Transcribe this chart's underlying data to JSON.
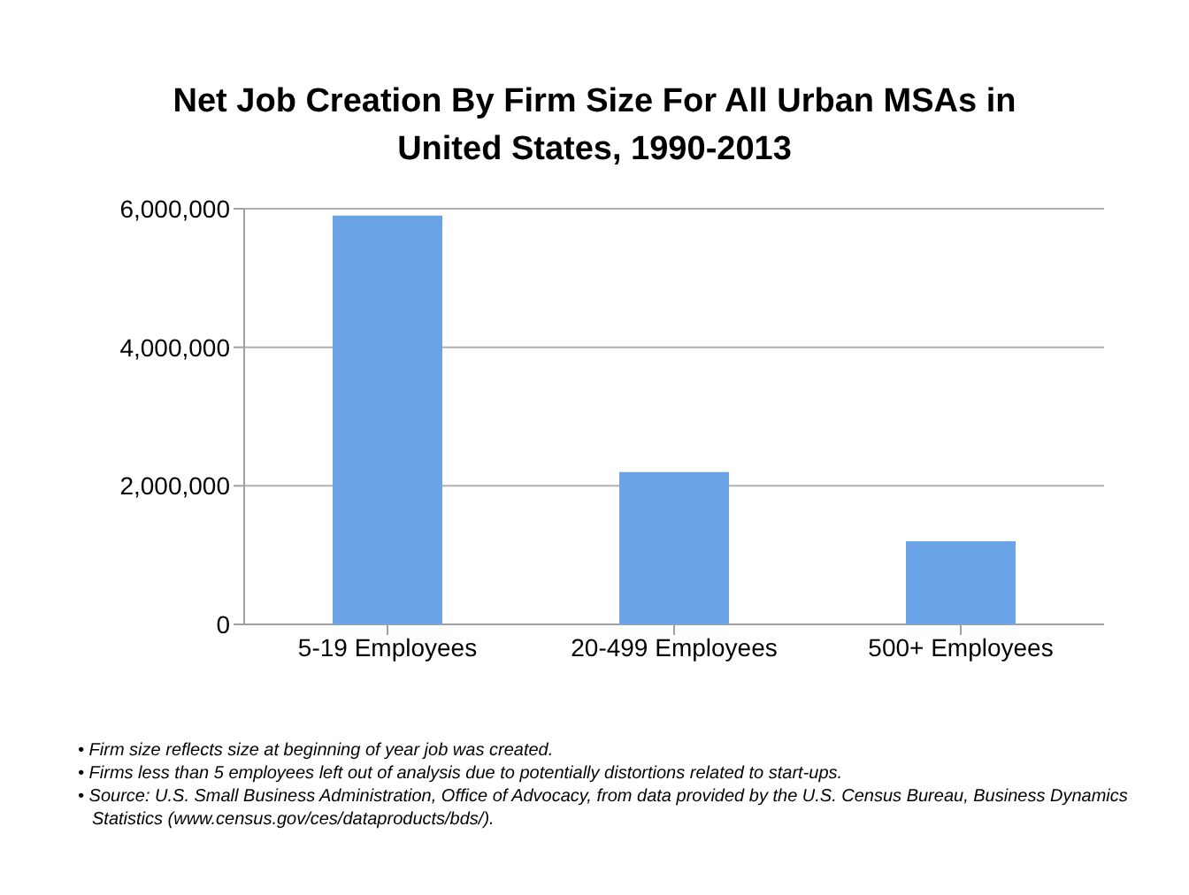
{
  "chart_data": {
    "type": "bar",
    "title": "Net Job Creation By Firm Size For All Urban MSAs in United States, 1990-2013",
    "categories": [
      "5-19 Employees",
      "20-499 Employees",
      "500+ Employees"
    ],
    "values": [
      5900000,
      2200000,
      1200000
    ],
    "color": "#6aa3e6",
    "ylim": [
      0,
      6000000
    ],
    "yticks": [
      0,
      {
        "value": 2000000,
        "label": "2,000,000"
      },
      {
        "value": 4000000,
        "label": "4,000,000"
      },
      {
        "value": 6000000,
        "label": "6,000,000"
      }
    ],
    "grid": "y",
    "annotations": [
      "• Firm size reflects size at beginning of year job was created.",
      "• Firms less than 5 employees left out of analysis due to potentially distortions related to start-ups.",
      "• Source: U.S. Small Business Administration, Office of Advocacy, from data provided by the U.S. Census Bureau, Business Dynamics Statistics (www.census.gov/ces/dataproducts/bds/)."
    ]
  }
}
